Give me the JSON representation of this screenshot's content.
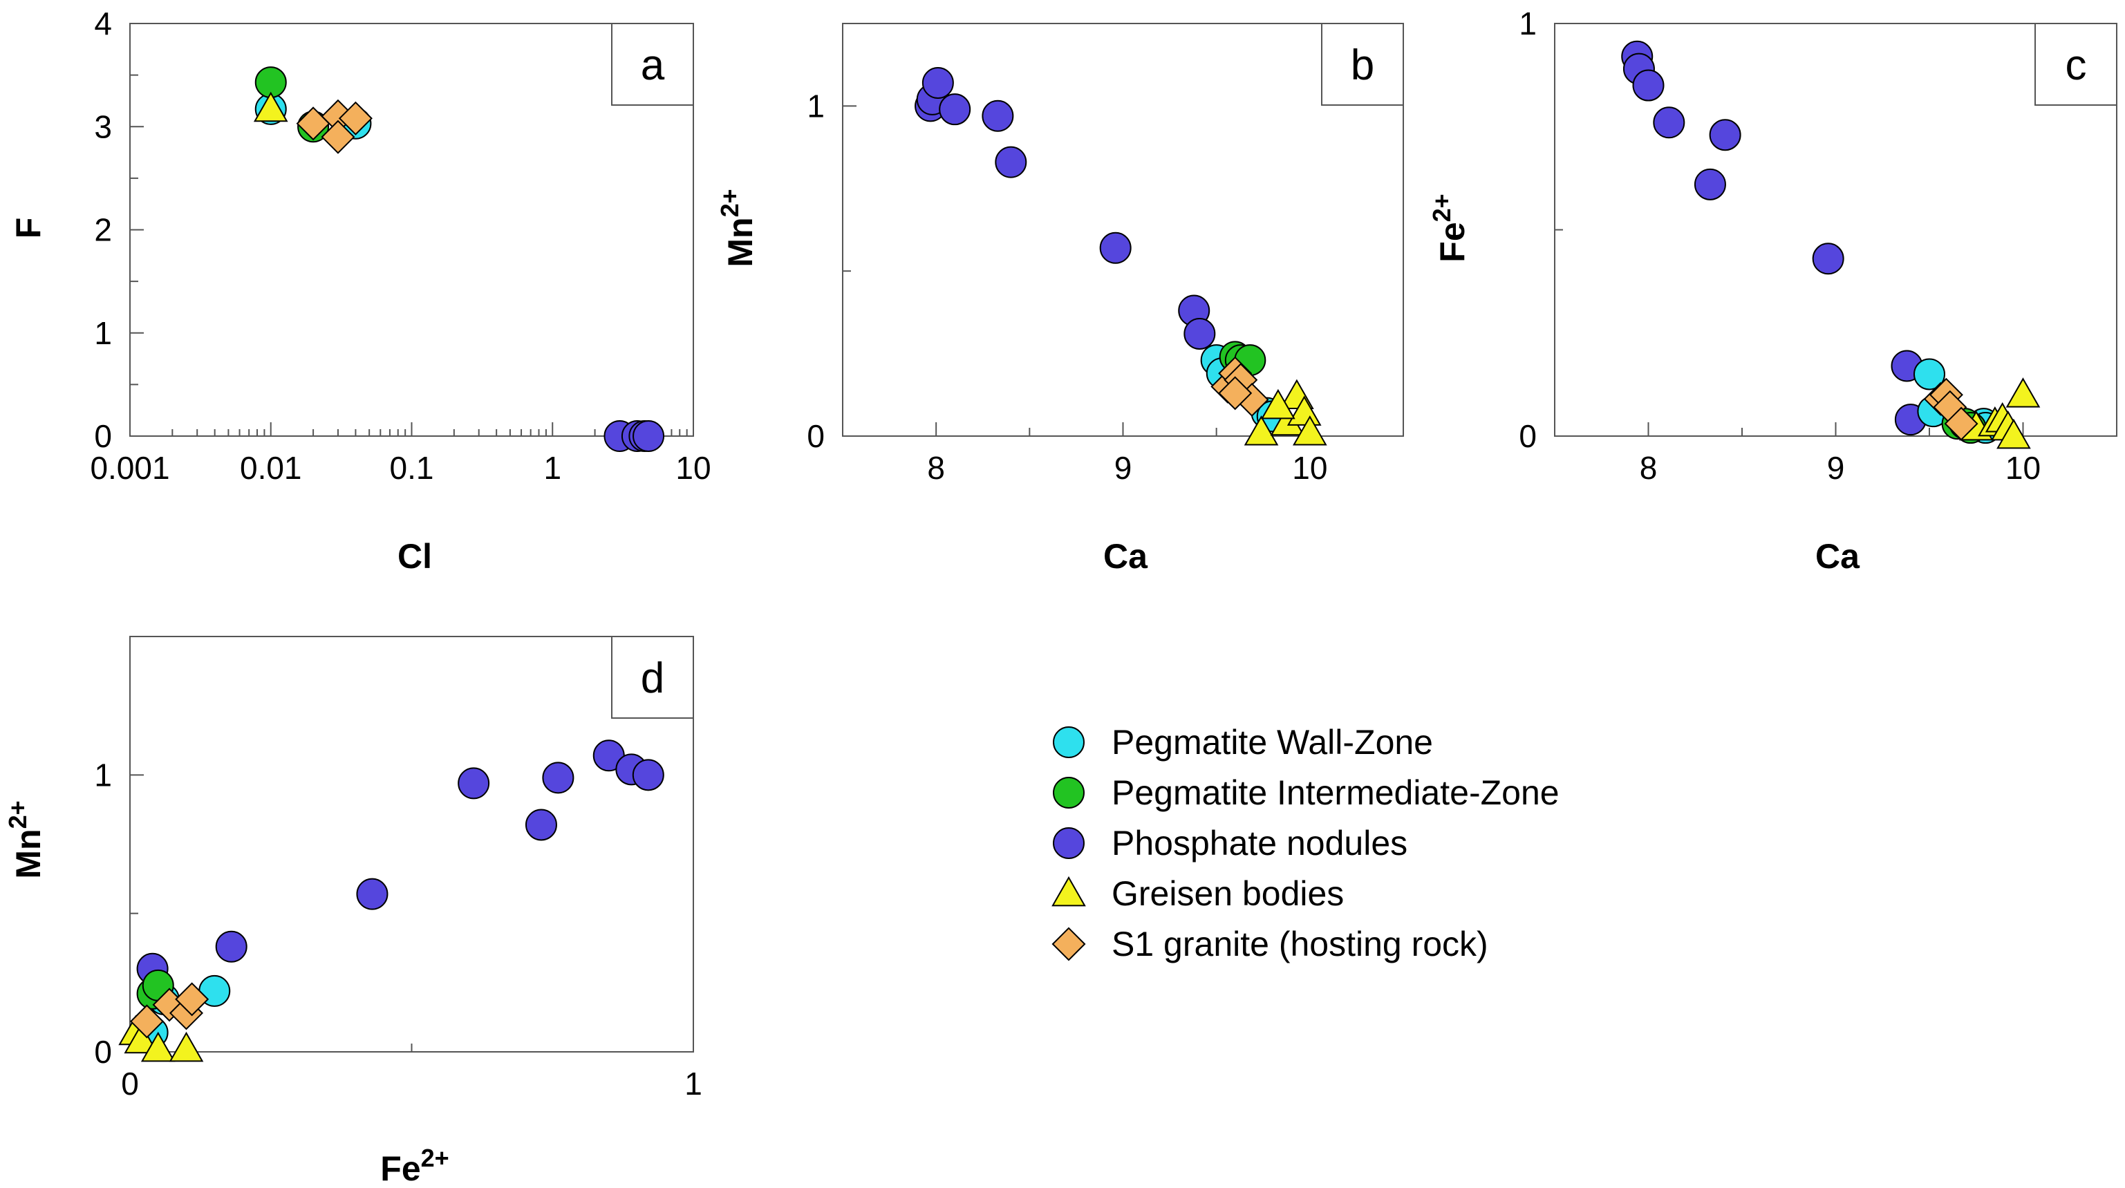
{
  "legend": {
    "items": [
      {
        "key": "wall",
        "label": "Pegmatite Wall-Zone",
        "shape": "circle",
        "color": "#2ee0ee"
      },
      {
        "key": "intermediate",
        "label": "Pegmatite Intermediate-Zone",
        "shape": "circle",
        "color": "#22c322"
      },
      {
        "key": "nodules",
        "label": "Phosphate nodules",
        "shape": "circle",
        "color": "#5546dd"
      },
      {
        "key": "greisen",
        "label": "Greisen bodies",
        "shape": "triangle",
        "color": "#f3f31e"
      },
      {
        "key": "granite",
        "label": "S1 granite (hosting rock)",
        "shape": "diamond",
        "color": "#f4b05c"
      }
    ]
  },
  "chart_data": [
    {
      "id": "a",
      "type": "scatter",
      "panel_label": "a",
      "xlabel": "Cl",
      "ylabel": "F",
      "ylabel_sup": "",
      "xscale": "log",
      "xlim": [
        0.001,
        10
      ],
      "ylim": [
        0,
        4
      ],
      "xticks": [
        0.001,
        0.01,
        0.1,
        1,
        10
      ],
      "xtick_labels": [
        "0.001",
        "0.01",
        "0.1",
        "1",
        "10"
      ],
      "yticks": [
        0,
        1,
        2,
        3,
        4
      ],
      "ytick_labels": [
        "0",
        "1",
        "2",
        "3",
        "4"
      ],
      "yminor": [
        0.5,
        1.5,
        2.5,
        3.5
      ],
      "series": [
        {
          "key": "nodules",
          "x": [
            3.0,
            4.0,
            4.5,
            4.8
          ],
          "y": [
            0,
            0,
            0,
            0
          ]
        },
        {
          "key": "wall",
          "x": [
            0.01,
            0.04
          ],
          "y": [
            3.17,
            3.03
          ]
        },
        {
          "key": "intermediate",
          "x": [
            0.01,
            0.02
          ],
          "y": [
            3.43,
            3.0
          ]
        },
        {
          "key": "greisen",
          "x": [
            0.01
          ],
          "y": [
            3.17
          ]
        },
        {
          "key": "granite",
          "x": [
            0.02,
            0.03,
            0.03,
            0.04
          ],
          "y": [
            3.03,
            3.1,
            2.9,
            3.08
          ]
        }
      ]
    },
    {
      "id": "b",
      "type": "scatter",
      "panel_label": "b",
      "xlabel": "Ca",
      "ylabel": "Mn",
      "ylabel_sup": "2+",
      "xscale": "linear",
      "xlim": [
        7.5,
        10.5
      ],
      "ylim": [
        0,
        1.25
      ],
      "xticks": [
        8,
        9,
        10
      ],
      "xtick_labels": [
        "8",
        "9",
        "10"
      ],
      "xminor": [
        8.5,
        9.5
      ],
      "yticks": [
        0,
        1
      ],
      "ytick_labels": [
        "0",
        "1"
      ],
      "yminor": [
        0.5
      ],
      "series": [
        {
          "key": "nodules",
          "x": [
            7.97,
            7.98,
            8.01,
            8.1,
            8.33,
            8.4,
            8.96,
            9.38,
            9.41
          ],
          "y": [
            1.0,
            1.02,
            1.07,
            0.99,
            0.97,
            0.83,
            0.57,
            0.38,
            0.31
          ]
        },
        {
          "key": "wall",
          "x": [
            9.5,
            9.53,
            9.77,
            9.8
          ],
          "y": [
            0.23,
            0.19,
            0.07,
            0.06
          ]
        },
        {
          "key": "intermediate",
          "x": [
            9.6,
            9.63,
            9.68
          ],
          "y": [
            0.24,
            0.23,
            0.23
          ]
        },
        {
          "key": "greisen",
          "x": [
            9.74,
            9.88,
            9.93,
            9.97,
            10.0,
            9.83
          ],
          "y": [
            0.01,
            0.04,
            0.12,
            0.07,
            0.01,
            0.09
          ]
        },
        {
          "key": "granite",
          "x": [
            9.56,
            9.6,
            9.63,
            9.69,
            9.6
          ],
          "y": [
            0.15,
            0.19,
            0.17,
            0.11,
            0.13
          ]
        }
      ]
    },
    {
      "id": "c",
      "type": "scatter",
      "panel_label": "c",
      "xlabel": "Ca",
      "ylabel": "Fe",
      "ylabel_sup": "2+",
      "xscale": "linear",
      "xlim": [
        7.5,
        10.5
      ],
      "ylim": [
        0,
        1.0
      ],
      "xticks": [
        8,
        9,
        10
      ],
      "xtick_labels": [
        "8",
        "9",
        "10"
      ],
      "xminor": [
        8.5,
        9.5
      ],
      "yticks": [
        0,
        1
      ],
      "ytick_labels": [
        "0",
        "1"
      ],
      "yminor": [
        0.5
      ],
      "series": [
        {
          "key": "nodules",
          "x": [
            7.94,
            7.95,
            8.0,
            8.11,
            8.41,
            8.33,
            8.96,
            9.38,
            9.4
          ],
          "y": [
            0.92,
            0.89,
            0.85,
            0.76,
            0.73,
            0.61,
            0.43,
            0.17,
            0.04
          ]
        },
        {
          "key": "wall",
          "x": [
            9.5,
            9.52,
            9.79,
            9.8
          ],
          "y": [
            0.15,
            0.06,
            0.03,
            0.02
          ]
        },
        {
          "key": "intermediate",
          "x": [
            9.65,
            9.69,
            9.72
          ],
          "y": [
            0.03,
            0.03,
            0.02
          ]
        },
        {
          "key": "greisen",
          "x": [
            9.75,
            9.85,
            9.89,
            9.92,
            9.95,
            10.0
          ],
          "y": [
            0.02,
            0.03,
            0.04,
            0.02,
            0.0,
            0.1
          ]
        },
        {
          "key": "granite",
          "x": [
            9.56,
            9.59,
            9.61,
            9.67
          ],
          "y": [
            0.09,
            0.1,
            0.07,
            0.03
          ]
        }
      ]
    },
    {
      "id": "d",
      "type": "scatter",
      "panel_label": "d",
      "xlabel": "Fe",
      "xlabel_sup": "2+",
      "ylabel": "Mn",
      "ylabel_sup": "2+",
      "xscale": "linear",
      "xlim": [
        0,
        1.0
      ],
      "ylim": [
        0,
        1.5
      ],
      "xticks": [
        0,
        1
      ],
      "xtick_labels": [
        "0",
        "1"
      ],
      "xminor": [
        0.5
      ],
      "yticks": [
        0,
        1
      ],
      "ytick_labels": [
        "0",
        "1"
      ],
      "yminor": [
        0.5
      ],
      "series": [
        {
          "key": "nodules",
          "x": [
            0.04,
            0.18,
            0.43,
            0.61,
            0.73,
            0.76,
            0.85,
            0.89,
            0.92
          ],
          "y": [
            0.3,
            0.38,
            0.57,
            0.97,
            0.82,
            0.99,
            1.07,
            1.02,
            1.0
          ]
        },
        {
          "key": "wall",
          "x": [
            0.04,
            0.06,
            0.15
          ],
          "y": [
            0.07,
            0.19,
            0.22
          ]
        },
        {
          "key": "intermediate",
          "x": [
            0.04,
            0.05
          ],
          "y": [
            0.21,
            0.24
          ]
        },
        {
          "key": "greisen",
          "x": [
            0.01,
            0.02,
            0.05,
            0.1
          ],
          "y": [
            0.07,
            0.04,
            0.01,
            0.01
          ]
        },
        {
          "key": "granite",
          "x": [
            0.03,
            0.07,
            0.1,
            0.11
          ],
          "y": [
            0.11,
            0.17,
            0.14,
            0.19
          ]
        }
      ]
    }
  ]
}
